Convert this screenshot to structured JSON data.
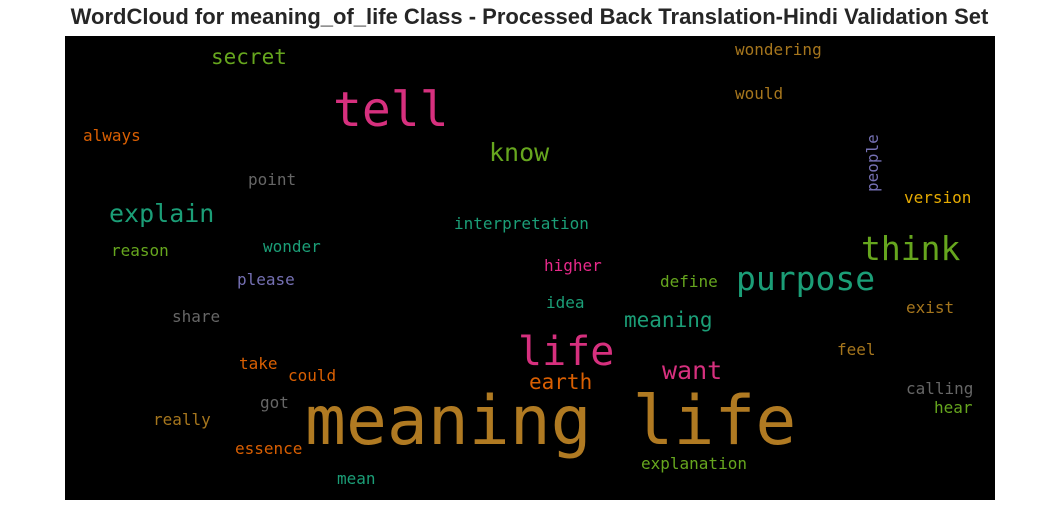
{
  "title": "WordCloud for meaning_of_life Class - Processed Back Translation-Hindi Validation Set",
  "words": [
    {
      "text": "meaning life",
      "color": "#b07a22"
    },
    {
      "text": "tell",
      "color": "#d6307e"
    },
    {
      "text": "life",
      "color": "#d6307e"
    },
    {
      "text": "purpose",
      "color": "#1b9e77"
    },
    {
      "text": "think",
      "color": "#66a61e"
    },
    {
      "text": "know",
      "color": "#66a61e"
    },
    {
      "text": "explain",
      "color": "#1b9e77"
    },
    {
      "text": "want",
      "color": "#d6307e"
    },
    {
      "text": "meaning",
      "color": "#1b9e77"
    },
    {
      "text": "earth",
      "color": "#d95f02"
    },
    {
      "text": "secret",
      "color": "#66a61e"
    },
    {
      "text": "wondering",
      "color": "#a6761d"
    },
    {
      "text": "would",
      "color": "#a6761d"
    },
    {
      "text": "always",
      "color": "#d95f02"
    },
    {
      "text": "people",
      "color": "#7570b3"
    },
    {
      "text": "point",
      "color": "#666666"
    },
    {
      "text": "version",
      "color": "#e6ab02"
    },
    {
      "text": "interpretation",
      "color": "#1b9e77"
    },
    {
      "text": "reason",
      "color": "#66a61e"
    },
    {
      "text": "wonder",
      "color": "#1b9e77"
    },
    {
      "text": "higher",
      "color": "#e7298a"
    },
    {
      "text": "please",
      "color": "#7570b3"
    },
    {
      "text": "define",
      "color": "#66a61e"
    },
    {
      "text": "idea",
      "color": "#1b9e77"
    },
    {
      "text": "share",
      "color": "#666666"
    },
    {
      "text": "exist",
      "color": "#a6761d"
    },
    {
      "text": "feel",
      "color": "#a6761d"
    },
    {
      "text": "take",
      "color": "#d95f02"
    },
    {
      "text": "could",
      "color": "#d95f02"
    },
    {
      "text": "calling",
      "color": "#666666"
    },
    {
      "text": "got",
      "color": "#666666"
    },
    {
      "text": "hear",
      "color": "#66a61e"
    },
    {
      "text": "really",
      "color": "#a6761d"
    },
    {
      "text": "essence",
      "color": "#d95f02"
    },
    {
      "text": "explanation",
      "color": "#66a61e"
    },
    {
      "text": "mean",
      "color": "#1b9e77"
    }
  ]
}
